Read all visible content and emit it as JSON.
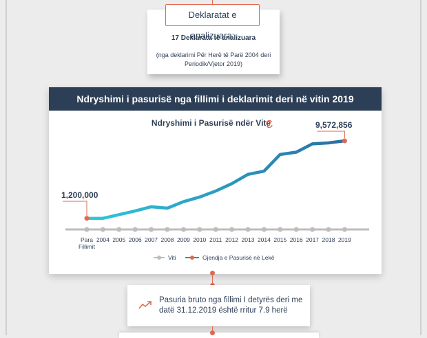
{
  "top_box": {
    "tag": "Deklaratat e analizuara:",
    "count_text": "17 Deklarata të analizuara",
    "note": "(nga deklarimi Për Herë të Parë 2004 deri Periodik/Vjetor 2019)"
  },
  "chart_section": {
    "header": "Ndryshimi i pasurisë nga fillimi i deklarimit deri në vitin 2019"
  },
  "chart_data": {
    "type": "line",
    "title": "Ndryshimi i Pasurisë ndër Vite",
    "categories": [
      "Para Fillimit",
      "2004",
      "2005",
      "2006",
      "2007",
      "2008",
      "2009",
      "2010",
      "2011",
      "2012",
      "2013",
      "2014",
      "2015",
      "2016",
      "2017",
      "2018",
      "2019"
    ],
    "series": [
      {
        "name": "Viti",
        "values": [
          0,
          0,
          0,
          0,
          0,
          0,
          0,
          0,
          0,
          0,
          0,
          0,
          0,
          0,
          0,
          0,
          0
        ]
      },
      {
        "name": "Gjendja e Pasurisë në Lekë",
        "values": [
          1200000,
          1200000,
          1600000,
          2000000,
          2450000,
          2300000,
          3000000,
          3500000,
          4150000,
          4950000,
          5950000,
          6300000,
          8100000,
          8350000,
          9250000,
          9350000,
          9572856
        ]
      }
    ],
    "annotations": [
      "1,200,000",
      "9,572,856"
    ],
    "legend_position": "bottom",
    "colors": {
      "trend_start": "#2ec9dc",
      "trend_end": "#2a6fa3",
      "baseline": "#bdbdbd",
      "highlight": "#e0684f"
    }
  },
  "summary": {
    "text": "Pasuria bruto nga fillimi I detyrës deri me datë 31.12.2019 është rritur 7.9 herë",
    "icon": "trend-up-icon"
  }
}
